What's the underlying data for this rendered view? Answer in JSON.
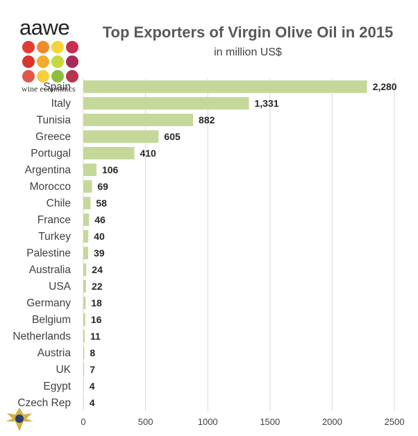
{
  "logo": {
    "word": "aawe",
    "tagline": "wine economics",
    "dot_colors": [
      "#e13d32",
      "#f08a2a",
      "#f5d43a",
      "#c72f52",
      "#d8352f",
      "#f2ac2d",
      "#c7d940",
      "#a8285a",
      "#e2574c",
      "#f7cf3c",
      "#8ebf3a",
      "#b8344e"
    ]
  },
  "colors": {
    "bar": "#c5d89a",
    "grid": "#d9d9d9",
    "label": "#262626"
  },
  "chart_data": {
    "type": "bar",
    "orientation": "horizontal",
    "title": "Top Exporters of Virgin Olive Oil in 2015",
    "subtitle": "in million US$",
    "categories": [
      "Spain",
      "Italy",
      "Tunisia",
      "Greece",
      "Portugal",
      "Argentina",
      "Morocco",
      "Chile",
      "France",
      "Turkey",
      "Palestine",
      "Australia",
      "USA",
      "Germany",
      "Belgium",
      "Netherlands",
      "Austria",
      "UK",
      "Egypt",
      "Czech Rep"
    ],
    "values": [
      2280,
      1331,
      882,
      605,
      410,
      106,
      69,
      58,
      46,
      40,
      39,
      24,
      22,
      18,
      16,
      11,
      8,
      7,
      4,
      4
    ],
    "value_labels": [
      "2,280",
      "1,331",
      "882",
      "605",
      "410",
      "106",
      "69",
      "58",
      "46",
      "40",
      "39",
      "24",
      "22",
      "18",
      "16",
      "11",
      "8",
      "7",
      "4",
      "4"
    ],
    "xlim": [
      0,
      2500
    ],
    "x_ticks": [
      0,
      500,
      1000,
      1500,
      2000,
      2500
    ],
    "x_tick_labels": [
      "0",
      "500",
      "1000",
      "1500",
      "2000",
      "2500"
    ],
    "grid": true,
    "legend": "none"
  }
}
